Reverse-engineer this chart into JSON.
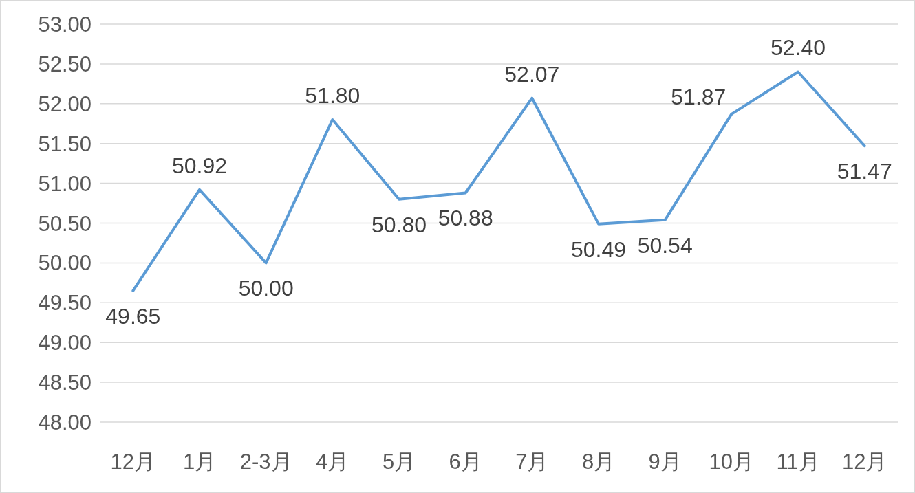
{
  "chart_data": {
    "type": "line",
    "categories": [
      "12月",
      "1月",
      "2-3月",
      "4月",
      "5月",
      "6月",
      "7月",
      "8月",
      "9月",
      "10月",
      "11月",
      "12月"
    ],
    "series": [
      {
        "color": "#5b9bd5",
        "values": [
          49.65,
          50.92,
          50.0,
          51.8,
          50.8,
          50.88,
          52.07,
          50.49,
          50.54,
          51.87,
          52.4,
          51.47
        ],
        "value_labels": [
          "49.65",
          "50.92",
          "50.00",
          "51.80",
          "50.80",
          "50.88",
          "52.07",
          "50.49",
          "50.54",
          "51.87",
          "52.40",
          "51.47"
        ]
      }
    ],
    "ylim": [
      48,
      53
    ],
    "yticks": [
      {
        "value": 48,
        "label": "48.00"
      },
      {
        "value": 48.5,
        "label": "48.50"
      },
      {
        "value": 49,
        "label": "49.00"
      },
      {
        "value": 49.5,
        "label": "49.50"
      },
      {
        "value": 50,
        "label": "50.00"
      },
      {
        "value": 50.5,
        "label": "50.50"
      },
      {
        "value": 51,
        "label": "51.00"
      },
      {
        "value": 51.5,
        "label": "51.50"
      },
      {
        "value": 52,
        "label": "52.00"
      },
      {
        "value": 52.5,
        "label": "52.50"
      },
      {
        "value": 53,
        "label": "53.00"
      }
    ],
    "grid": "y",
    "marker": "none",
    "line_style": "solid"
  }
}
